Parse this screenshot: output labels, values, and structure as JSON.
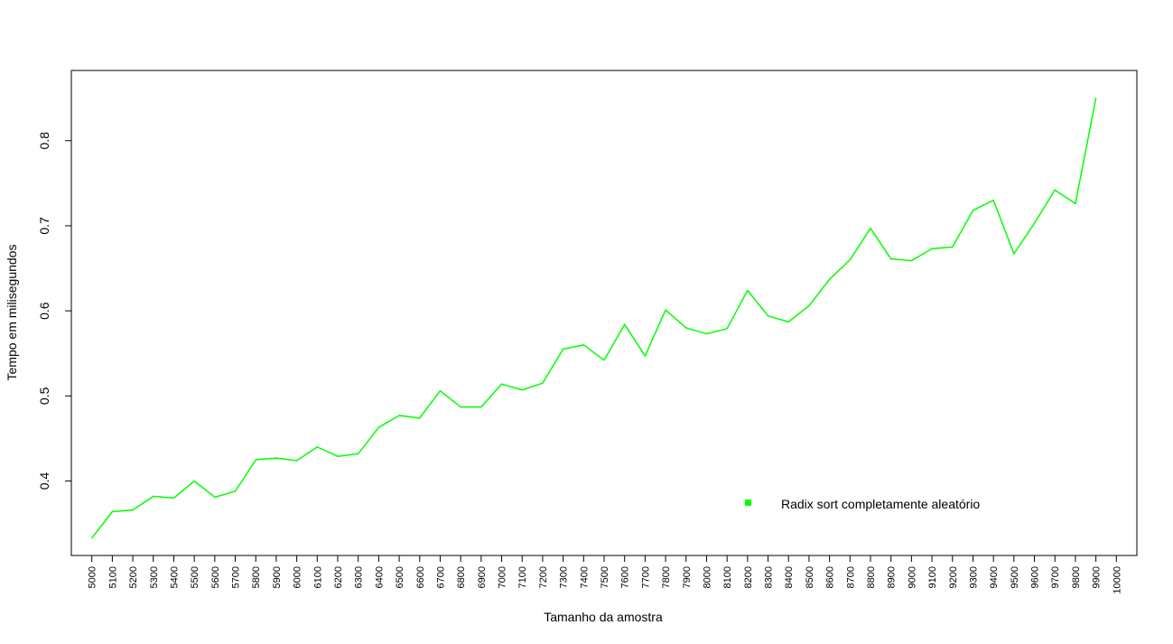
{
  "chart_data": {
    "type": "line",
    "title": "",
    "xlabel": "Tamanho da amostra",
    "ylabel": "Tempo em milisegundos",
    "x": [
      5000,
      5100,
      5200,
      5300,
      5400,
      5500,
      5600,
      5700,
      5800,
      5900,
      6000,
      6100,
      6200,
      6300,
      6400,
      6500,
      6600,
      6700,
      6800,
      6900,
      7000,
      7100,
      7200,
      7300,
      7400,
      7500,
      7600,
      7700,
      7800,
      7900,
      8000,
      8100,
      8200,
      8300,
      8400,
      8500,
      8600,
      8700,
      8800,
      8900,
      9000,
      9100,
      9200,
      9300,
      9400,
      9500,
      9600,
      9700,
      9800,
      9900
    ],
    "x_ticks": [
      "5000",
      "5100",
      "5200",
      "5300",
      "5400",
      "5500",
      "5600",
      "5700",
      "5800",
      "5900",
      "6000",
      "6100",
      "6200",
      "6300",
      "6400",
      "6500",
      "6600",
      "6700",
      "6800",
      "6900",
      "7000",
      "7100",
      "7200",
      "7300",
      "7400",
      "7500",
      "7600",
      "7700",
      "7800",
      "7900",
      "8000",
      "8100",
      "8200",
      "8300",
      "8400",
      "8500",
      "8600",
      "8700",
      "8800",
      "8900",
      "9000",
      "9100",
      "9200",
      "9300",
      "9400",
      "9500",
      "9600",
      "9700",
      "9800",
      "9900",
      "10000"
    ],
    "y_ticks": [
      "0.4",
      "0.5",
      "0.6",
      "0.7",
      "0.8"
    ],
    "xlim": [
      4900,
      10100
    ],
    "ylim": [
      0.3125,
      0.8825
    ],
    "series": [
      {
        "name": "Radix sort completamente aleatório",
        "color": "#00ff00",
        "values": [
          0.333,
          0.364,
          0.366,
          0.382,
          0.38,
          0.4,
          0.381,
          0.388,
          0.425,
          0.427,
          0.424,
          0.44,
          0.429,
          0.432,
          0.463,
          0.477,
          0.474,
          0.506,
          0.487,
          0.487,
          0.514,
          0.507,
          0.515,
          0.555,
          0.56,
          0.542,
          0.584,
          0.547,
          0.601,
          0.58,
          0.573,
          0.579,
          0.624,
          0.594,
          0.587,
          0.606,
          0.637,
          0.66,
          0.697,
          0.661,
          0.659,
          0.673,
          0.675,
          0.718,
          0.73,
          0.667,
          0.703,
          0.742,
          0.726,
          0.85
        ]
      }
    ],
    "legend_position": "bottom-right",
    "grid": false
  }
}
